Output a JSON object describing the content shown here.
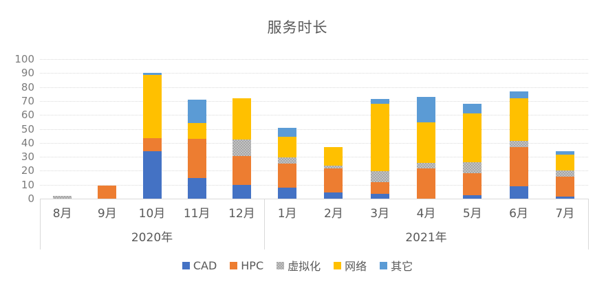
{
  "title": "服务时长",
  "chart_data": {
    "type": "bar",
    "stacked": true,
    "title": "服务时长",
    "grid": "horizontal-dotted",
    "legend_position": "bottom",
    "ylim": [
      0,
      100
    ],
    "ytick_step": 10,
    "yticks": [
      0,
      10,
      20,
      30,
      40,
      50,
      60,
      70,
      80,
      90,
      100
    ],
    "categories": [
      "8月",
      "9月",
      "10月",
      "11月",
      "12月",
      "1月",
      "2月",
      "3月",
      "4月",
      "5月",
      "6月",
      "7月"
    ],
    "category_groups": [
      {
        "label": "2020年",
        "count": 5
      },
      {
        "label": "2021年",
        "count": 7
      }
    ],
    "series": [
      {
        "name": "CAD",
        "color": "#4472C4",
        "pattern": "solid",
        "values": [
          0,
          0,
          34,
          15,
          10,
          8,
          4.5,
          3.5,
          0,
          2.5,
          9,
          1.5
        ]
      },
      {
        "name": "HPC",
        "color": "#ED7D31",
        "pattern": "solid",
        "values": [
          0,
          9.5,
          9.5,
          28,
          20.5,
          17,
          17,
          8.5,
          21.5,
          15.5,
          28,
          14.5
        ]
      },
      {
        "name": "虚拟化",
        "color": "#A5A5A5",
        "pattern": "checker",
        "values": [
          2,
          0,
          0,
          0,
          12,
          4.5,
          2,
          7.5,
          4,
          8,
          4.5,
          4
        ]
      },
      {
        "name": "网络",
        "color": "#FFC000",
        "pattern": "solid",
        "values": [
          0,
          0,
          45,
          11,
          29.5,
          15,
          13.5,
          48.5,
          29,
          35,
          30.5,
          11.5
        ]
      },
      {
        "name": "其它",
        "color": "#5B9BD5",
        "pattern": "solid",
        "values": [
          0,
          0,
          1.5,
          17,
          0,
          6.5,
          0,
          3.5,
          18.5,
          7,
          5,
          2.5
        ]
      }
    ],
    "totals": [
      2,
      9.5,
      90,
      71,
      72,
      51,
      37,
      71.5,
      73,
      68,
      77,
      34
    ]
  },
  "colors": {
    "title_text": "#595959",
    "axis_text": "#595959",
    "ytick_text": "#7b7b7b",
    "gridline": "#d9d9d9",
    "background": "#ffffff"
  }
}
